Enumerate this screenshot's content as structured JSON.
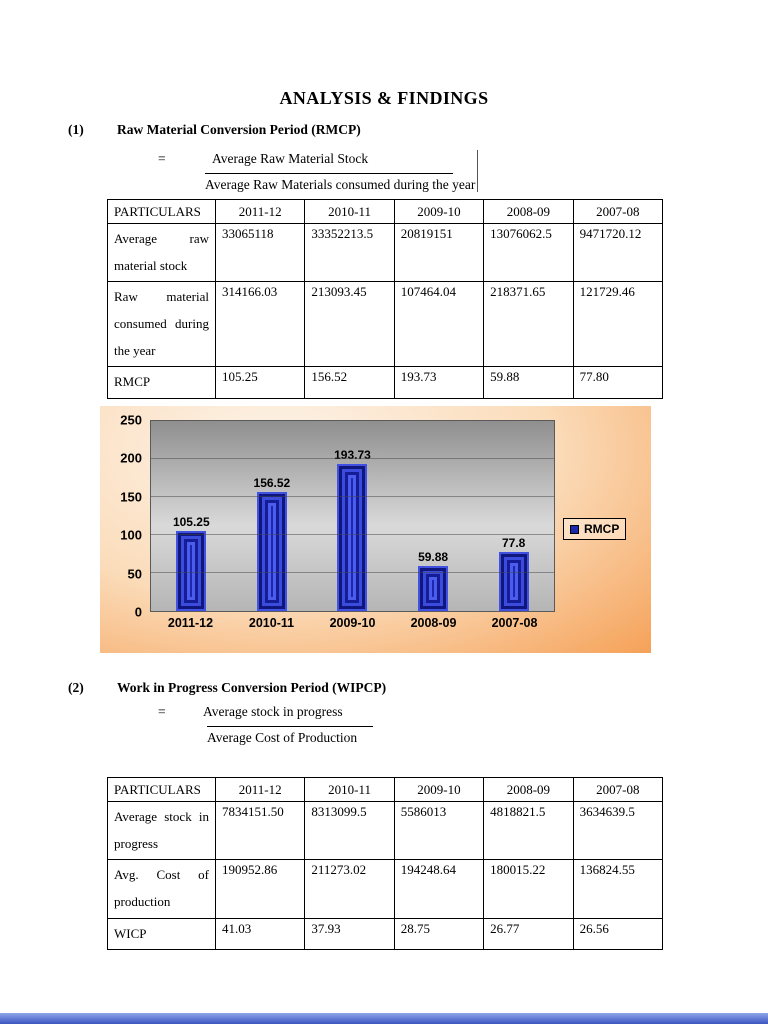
{
  "page": {
    "title": "ANALYSIS & FINDINGS"
  },
  "section1": {
    "number": "(1)",
    "heading": "Raw Material Conversion Period (RMCP)",
    "equals_sign": "=",
    "formula_numerator": "Average Raw Material Stock",
    "formula_denominator": "Average Raw Materials consumed during the year",
    "table": {
      "headers": [
        "PARTICULARS",
        "2011-12",
        "2010-11",
        "2009-10",
        "2008-09",
        "2007-08"
      ],
      "rows": [
        {
          "label": "Average raw material stock",
          "values": [
            "33065118",
            "33352213.5",
            "20819151",
            "13076062.5",
            "9471720.12"
          ]
        },
        {
          "label": "Raw material consumed during the year",
          "values": [
            "314166.03",
            "213093.45",
            "107464.04",
            "218371.65",
            "121729.46"
          ]
        },
        {
          "label": "RMCP",
          "values": [
            "105.25",
            "156.52",
            "193.73",
            "59.88",
            "77.80"
          ]
        }
      ]
    }
  },
  "chart_data": {
    "type": "bar",
    "title": "",
    "categories": [
      "2011-12",
      "2010-11",
      "2009-10",
      "2008-09",
      "2007-08"
    ],
    "series": [
      {
        "name": "RMCP",
        "values": [
          105.25,
          156.52,
          193.73,
          59.88,
          77.8
        ]
      }
    ],
    "data_labels": [
      "105.25",
      "156.52",
      "193.73",
      "59.88",
      "77.8"
    ],
    "xlabel": "",
    "ylabel": "",
    "ylim": [
      0,
      250
    ],
    "yticks": [
      0,
      50,
      100,
      150,
      200,
      250
    ],
    "grid": true,
    "legend_position": "right",
    "colors": {
      "bar": "#1c28b0",
      "plot_bg": "#b5b5b5",
      "chart_bg_inner": "#fdf4ea",
      "chart_bg_outer": "#f5a158"
    }
  },
  "section2": {
    "number": "(2)",
    "heading": "Work in Progress Conversion Period (WIPCP)",
    "equals_sign": "=",
    "formula_numerator": "Average stock in progress",
    "formula_denominator": "Average Cost of Production",
    "table": {
      "headers": [
        "PARTICULARS",
        "2011-12",
        "2010-11",
        "2009-10",
        "2008-09",
        "2007-08"
      ],
      "rows": [
        {
          "label": "Average stock in progress",
          "values": [
            "7834151.50",
            "8313099.5",
            "5586013",
            "4818821.5",
            "3634639.5"
          ]
        },
        {
          "label": "Avg. Cost of production",
          "values": [
            "190952.86",
            "211273.02",
            "194248.64",
            "180015.22",
            "136824.55"
          ]
        },
        {
          "label": "WICP",
          "values": [
            "41.03",
            "37.93",
            "28.75",
            "26.77",
            "26.56"
          ]
        }
      ]
    }
  },
  "footer": {
    "strip_color_top": "#8ea6ea",
    "strip_color_bottom": "#3c55c0"
  }
}
